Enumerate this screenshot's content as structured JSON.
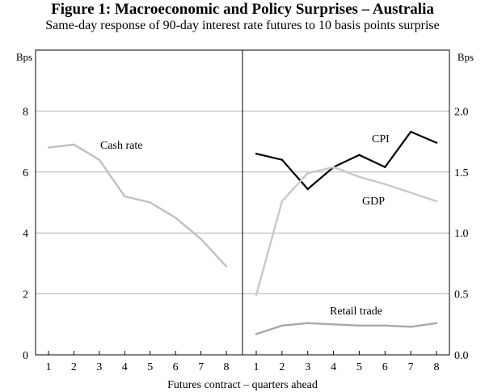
{
  "header": {
    "title": "Figure 1: Macroeconomic and Policy Surprises – Australia",
    "subtitle": "Same-day response of 90-day interest rate futures to 10 basis points surprise"
  },
  "chart_data": [
    {
      "type": "line",
      "panel": "left",
      "x": [
        1,
        2,
        3,
        4,
        5,
        6,
        7,
        8
      ],
      "xlabel": "",
      "ylabel": "Bps",
      "ylim": [
        0,
        10
      ],
      "yticks": [
        "0",
        "2",
        "4",
        "6",
        "8"
      ],
      "xticks": [
        "1",
        "2",
        "3",
        "4",
        "5",
        "6",
        "7",
        "8"
      ],
      "grid": true,
      "series": [
        {
          "name": "Cash rate",
          "color": "#c0c0c0",
          "values": [
            6.8,
            6.9,
            6.4,
            5.2,
            5.0,
            4.5,
            3.8,
            2.9
          ]
        }
      ]
    },
    {
      "type": "line",
      "panel": "right",
      "x": [
        1,
        2,
        3,
        4,
        5,
        6,
        7,
        8
      ],
      "xlabel": "",
      "ylabel": "Bps",
      "ylim": [
        0,
        2.5
      ],
      "yticks": [
        "0.0",
        "0.5",
        "1.0",
        "1.5",
        "2.0"
      ],
      "xticks": [
        "1",
        "2",
        "3",
        "4",
        "5",
        "6",
        "7",
        "8"
      ],
      "grid": true,
      "series": [
        {
          "name": "CPI",
          "color": "#000000",
          "values": [
            1.65,
            1.6,
            1.36,
            1.54,
            1.64,
            1.54,
            1.83,
            1.74
          ]
        },
        {
          "name": "GDP",
          "color": "#c8c8c8",
          "values": [
            0.49,
            1.26,
            1.49,
            1.54,
            1.46,
            1.4,
            1.33,
            1.26
          ]
        },
        {
          "name": "Retail trade",
          "color": "#a8a8a8",
          "values": [
            0.17,
            0.24,
            0.26,
            0.25,
            0.24,
            0.24,
            0.23,
            0.26
          ]
        }
      ]
    }
  ],
  "shared_xlabel": "Futures contract – quarters ahead"
}
